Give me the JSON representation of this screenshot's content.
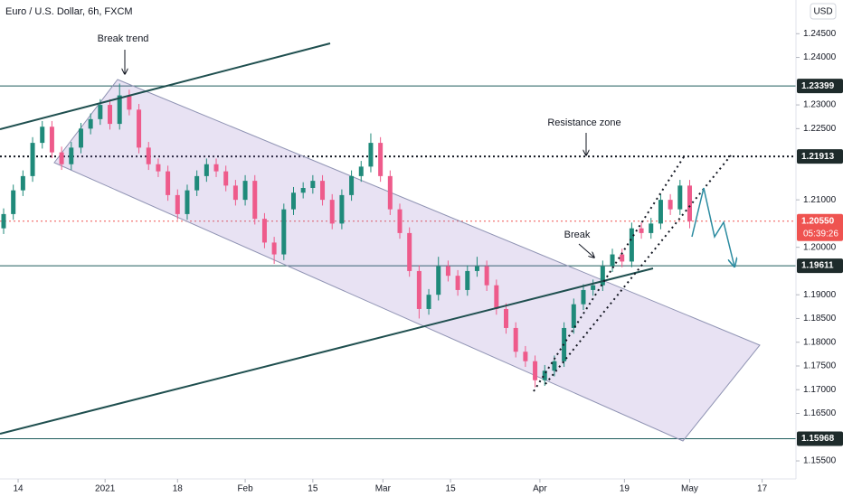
{
  "chart_data": {
    "type": "candlestick",
    "title": "Euro / U.S. Dollar, 6h, FXCM",
    "currency": "USD",
    "countdown": "05:39:26",
    "annotations": [
      "Break trend",
      "Resistance zone",
      "Break"
    ],
    "up_color": "#1f8a7a",
    "down_color": "#ee5b8b",
    "xlim": [
      -3.75,
      161
    ],
    "ylim": [
      1.1512,
      1.2521
    ],
    "xticks": [
      {
        "value": 0,
        "label": "14"
      },
      {
        "value": 18,
        "label": "2021"
      },
      {
        "value": 33,
        "label": "18"
      },
      {
        "value": 47,
        "label": "Feb"
      },
      {
        "value": 61,
        "label": "15"
      },
      {
        "value": 75.5,
        "label": "Mar"
      },
      {
        "value": 89.5,
        "label": "15"
      },
      {
        "value": 108,
        "label": "Apr"
      },
      {
        "value": 125.5,
        "label": "19"
      },
      {
        "value": 139,
        "label": "May"
      },
      {
        "value": 154,
        "label": "17"
      }
    ],
    "yticks": [
      {
        "value": 1.155,
        "label": "1.15500"
      },
      {
        "value": 1.165,
        "label": "1.16500"
      },
      {
        "value": 1.17,
        "label": "1.17000"
      },
      {
        "value": 1.175,
        "label": "1.17500"
      },
      {
        "value": 1.18,
        "label": "1.18000"
      },
      {
        "value": 1.185,
        "label": "1.18500"
      },
      {
        "value": 1.19,
        "label": "1.19000"
      },
      {
        "value": 1.2,
        "label": "1.20000"
      },
      {
        "value": 1.21,
        "label": "1.21000"
      },
      {
        "value": 1.225,
        "label": "1.22500"
      },
      {
        "value": 1.23,
        "label": "1.23000"
      },
      {
        "value": 1.24,
        "label": "1.24000"
      },
      {
        "value": 1.245,
        "label": "1.24500"
      }
    ],
    "levels": [
      {
        "value": 1.23399,
        "label": "1.23399",
        "style": "solid",
        "color": "#1f5c5c"
      },
      {
        "value": 1.21913,
        "label": "1.21913",
        "style": "dotted",
        "color": "#131722"
      },
      {
        "value": 1.2055,
        "label": "1.20550",
        "style": "dotted",
        "color": "#ef5350"
      },
      {
        "value": 1.19611,
        "label": "1.19611",
        "style": "solid",
        "color": "#1f5c5c"
      },
      {
        "value": 1.15968,
        "label": "1.15968",
        "style": "solid",
        "color": "#1f5c5c"
      }
    ],
    "x": [
      -3,
      -1,
      1,
      3,
      5,
      7,
      9,
      11,
      13,
      15,
      17,
      19,
      21,
      23,
      25,
      27,
      29,
      31,
      33,
      35,
      37,
      39,
      41,
      43,
      45,
      47,
      49,
      51,
      53,
      55,
      57,
      59,
      61,
      63,
      65,
      67,
      69,
      71,
      73,
      75,
      77,
      79,
      81,
      83,
      85,
      87,
      89,
      91,
      93,
      95,
      97,
      99,
      101,
      103,
      105,
      107,
      109,
      111,
      113,
      115,
      117,
      119,
      121,
      123,
      125,
      127,
      129,
      131,
      133,
      135,
      137,
      139
    ],
    "open": [
      1.204,
      1.207,
      1.212,
      1.215,
      1.222,
      1.2254,
      1.22,
      1.2175,
      1.221,
      1.225,
      1.227,
      1.23,
      1.226,
      1.232,
      1.229,
      1.221,
      1.2175,
      1.216,
      1.211,
      1.207,
      1.212,
      1.215,
      1.2175,
      1.216,
      1.213,
      1.21,
      1.214,
      1.206,
      1.201,
      1.1985,
      1.208,
      1.2115,
      1.2125,
      1.214,
      1.21,
      1.205,
      1.211,
      1.215,
      1.217,
      1.222,
      1.215,
      1.208,
      1.203,
      1.195,
      1.187,
      1.19,
      1.196,
      1.194,
      1.191,
      1.195,
      1.196,
      1.192,
      1.187,
      1.183,
      1.178,
      1.176,
      1.172,
      1.174,
      1.176,
      1.183,
      1.188,
      1.191,
      1.192,
      1.196,
      1.1985,
      1.197,
      1.204,
      1.203,
      1.205,
      1.21,
      1.208,
      1.213
    ],
    "high": [
      1.2082,
      1.2132,
      1.2162,
      1.2232,
      1.2266,
      1.2266,
      1.2212,
      1.2222,
      1.2262,
      1.2282,
      1.2312,
      1.2312,
      1.2345,
      1.2332,
      1.2302,
      1.2222,
      1.2187,
      1.2172,
      1.2122,
      1.2132,
      1.2162,
      1.2187,
      1.2187,
      1.2172,
      1.2142,
      1.2152,
      1.2152,
      1.2072,
      1.2022,
      1.2092,
      1.2127,
      1.2137,
      1.2152,
      1.2152,
      1.2112,
      1.2122,
      1.2162,
      1.2182,
      1.224,
      1.2232,
      1.2162,
      1.2092,
      1.2042,
      1.1962,
      1.1912,
      1.198,
      1.1972,
      1.1952,
      1.1962,
      1.198,
      1.1972,
      1.1932,
      1.1882,
      1.1842,
      1.1792,
      1.1772,
      1.1752,
      1.1772,
      1.1842,
      1.1892,
      1.1922,
      1.1932,
      1.1972,
      1.1997,
      1.1997,
      1.2052,
      1.2052,
      1.2062,
      1.2112,
      1.2112,
      1.2142,
      1.2142
    ],
    "low": [
      1.2028,
      1.2058,
      1.2108,
      1.2138,
      1.2208,
      1.2188,
      1.2163,
      1.2163,
      1.2198,
      1.2238,
      1.2258,
      1.2248,
      1.2248,
      1.2278,
      1.2198,
      1.2163,
      1.2148,
      1.2098,
      1.2058,
      1.2058,
      1.2108,
      1.2138,
      1.2148,
      1.2118,
      1.2088,
      1.2088,
      1.2048,
      1.1998,
      1.1965,
      1.1973,
      1.2068,
      1.2103,
      1.2113,
      1.2088,
      1.2038,
      1.2038,
      1.2098,
      1.2138,
      1.2158,
      1.2138,
      1.2068,
      1.2018,
      1.1938,
      1.185,
      1.1858,
      1.1888,
      1.1928,
      1.1898,
      1.1898,
      1.1938,
      1.1908,
      1.1858,
      1.1818,
      1.1768,
      1.1748,
      1.1705,
      1.1708,
      1.1728,
      1.1748,
      1.1818,
      1.1868,
      1.1898,
      1.1908,
      1.1948,
      1.1958,
      1.1958,
      1.2018,
      1.2018,
      1.2038,
      1.2068,
      1.2068,
      1.204
    ],
    "close": [
      1.207,
      1.212,
      1.215,
      1.222,
      1.2254,
      1.22,
      1.2175,
      1.221,
      1.225,
      1.227,
      1.23,
      1.226,
      1.232,
      1.229,
      1.221,
      1.2175,
      1.216,
      1.211,
      1.207,
      1.212,
      1.215,
      1.2175,
      1.216,
      1.213,
      1.21,
      1.214,
      1.206,
      1.201,
      1.1985,
      1.208,
      1.2115,
      1.2125,
      1.214,
      1.21,
      1.205,
      1.211,
      1.215,
      1.217,
      1.222,
      1.215,
      1.208,
      1.203,
      1.195,
      1.187,
      1.19,
      1.196,
      1.194,
      1.191,
      1.195,
      1.196,
      1.192,
      1.187,
      1.183,
      1.178,
      1.176,
      1.172,
      1.174,
      1.176,
      1.183,
      1.188,
      1.191,
      1.192,
      1.196,
      1.1985,
      1.197,
      1.204,
      1.203,
      1.205,
      1.21,
      1.208,
      1.213,
      1.2055
    ]
  }
}
